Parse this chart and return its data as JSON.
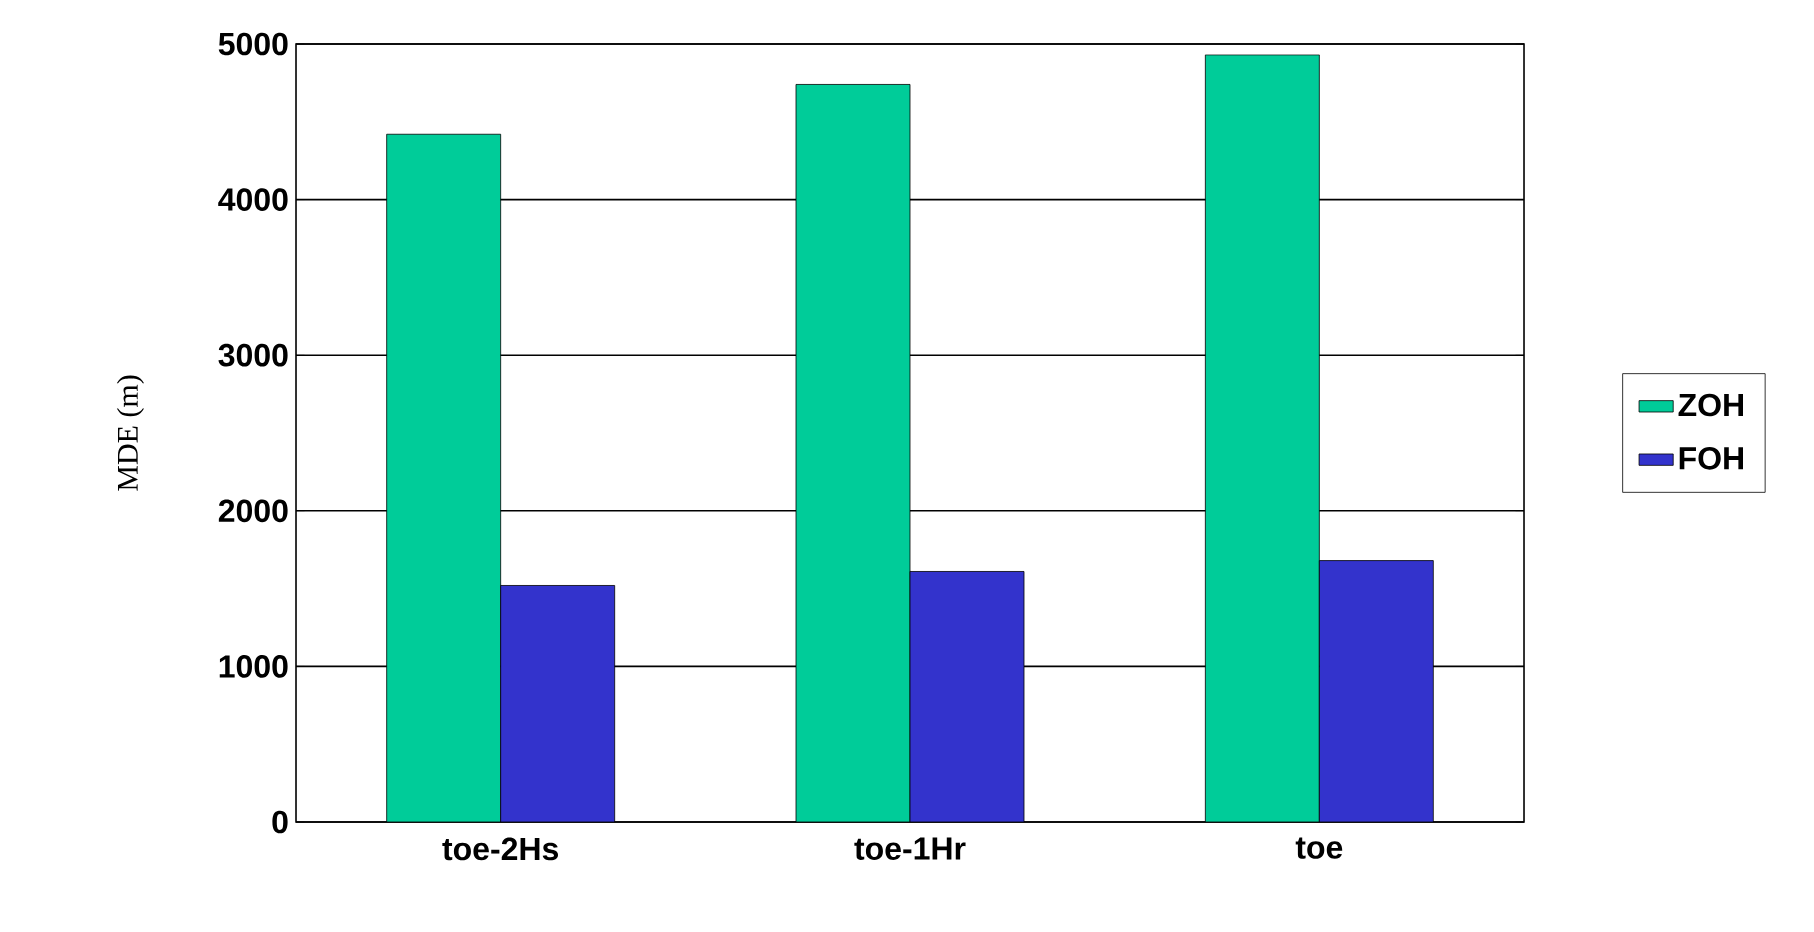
{
  "chart_data": {
    "type": "bar",
    "ylabel": "MDE (m)",
    "categories": [
      "toe-2Hs",
      "toe-1Hr",
      "toe"
    ],
    "series": [
      {
        "name": "ZOH",
        "color": "#00cc99",
        "values": [
          4420,
          4740,
          4930
        ]
      },
      {
        "name": "FOH",
        "color": "#3333cc",
        "values": [
          1520,
          1610,
          1680
        ]
      }
    ],
    "ylim": [
      0,
      5000
    ],
    "yticks": [
      0,
      1000,
      2000,
      3000,
      4000,
      5000
    ],
    "grid": "y",
    "legend": "right"
  }
}
